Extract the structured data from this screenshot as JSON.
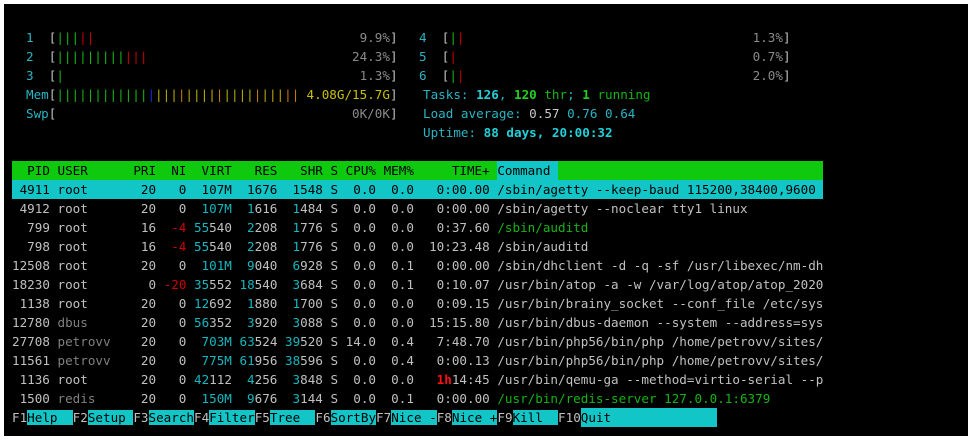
{
  "meters_left": [
    {
      "label": "1",
      "bars": [
        "g",
        "g",
        "g",
        "r",
        "r"
      ],
      "value": "9.9%"
    },
    {
      "label": "2",
      "bars": [
        "g",
        "g",
        "g",
        "g",
        "g",
        "g",
        "g",
        "g",
        "g",
        "r",
        "r",
        "r"
      ],
      "value": "24.3%"
    },
    {
      "label": "3",
      "bars": [
        "g"
      ],
      "value": "1.3%"
    },
    {
      "label": "Mem",
      "bars": [
        "g",
        "g",
        "g",
        "g",
        "g",
        "g",
        "g",
        "g",
        "g",
        "g",
        "g",
        "g",
        "b",
        "y",
        "y",
        "y",
        "o",
        "y",
        "y",
        "y",
        "y",
        "o",
        "y",
        "y",
        "y",
        "y",
        "o",
        "y",
        "y",
        "y",
        "o",
        "o"
      ],
      "value": "4.08G/15.7G",
      "value_color": "#c8c000"
    },
    {
      "label": "Swp",
      "bars": [],
      "value": "0K/0K"
    }
  ],
  "meters_right": [
    {
      "label": "4",
      "bars": [
        "g",
        "r"
      ],
      "value": "1.3%"
    },
    {
      "label": "5",
      "bars": [
        "r"
      ],
      "value": "0.7%"
    },
    {
      "label": "6",
      "bars": [
        "g",
        "r"
      ],
      "value": "2.0%"
    }
  ],
  "tasks": {
    "label": "Tasks: ",
    "count": "126",
    "sep1": ", ",
    "threads": "120",
    "thr_label": " thr",
    "sep2": "; ",
    "running": "1",
    "running_label": " running"
  },
  "load": {
    "label": "Load average: ",
    "l1": "0.57",
    "l5": "0.76",
    "l15": "0.64"
  },
  "uptime": {
    "label": "Uptime: ",
    "value": "88 days, 20:00:32"
  },
  "columns": [
    "PID",
    "USER",
    "PRI",
    "NI",
    "VIRT",
    "RES",
    "SHR",
    "S",
    "CPU%",
    "MEM%",
    "TIME+",
    "Command"
  ],
  "processes": [
    {
      "pid": "4911",
      "user": "root",
      "pri": "20",
      "ni": "0",
      "virt": "107M",
      "res": "1676",
      "shr": "1548",
      "s": "S",
      "cpu": "0.0",
      "mem": "0.0",
      "time": "0:00.00",
      "cmd": "/sbin/agetty --keep-baud 115200,38400,9600",
      "selected": true
    },
    {
      "pid": "4912",
      "user": "root",
      "pri": "20",
      "ni": "0",
      "virt": "107M",
      "res": "1616",
      "shr": "1484",
      "s": "S",
      "cpu": "0.0",
      "mem": "0.0",
      "time": "0:00.00",
      "cmd": "/sbin/agetty --noclear tty1 linux"
    },
    {
      "pid": "799",
      "user": "root",
      "pri": "16",
      "ni": "-4",
      "virt": "55540",
      "res": "2208",
      "shr": "1776",
      "s": "S",
      "cpu": "0.0",
      "mem": "0.0",
      "time": "0:37.60",
      "cmd": "/sbin/auditd",
      "thread": true
    },
    {
      "pid": "798",
      "user": "root",
      "pri": "16",
      "ni": "-4",
      "virt": "55540",
      "res": "2208",
      "shr": "1776",
      "s": "S",
      "cpu": "0.0",
      "mem": "0.0",
      "time": "10:23.48",
      "cmd": "/sbin/auditd"
    },
    {
      "pid": "12508",
      "user": "root",
      "pri": "20",
      "ni": "0",
      "virt": "101M",
      "res": "9040",
      "shr": "6928",
      "s": "S",
      "cpu": "0.0",
      "mem": "0.1",
      "time": "0:00.00",
      "cmd": "/sbin/dhclient -d -q -sf /usr/libexec/nm-dh"
    },
    {
      "pid": "18230",
      "user": "root",
      "pri": "0",
      "ni": "-20",
      "virt": "35552",
      "res": "18540",
      "shr": "3684",
      "s": "S",
      "cpu": "0.0",
      "mem": "0.1",
      "time": "0:10.07",
      "cmd": "/usr/bin/atop -a -w /var/log/atop/atop_2020"
    },
    {
      "pid": "1138",
      "user": "root",
      "pri": "20",
      "ni": "0",
      "virt": "12692",
      "res": "1880",
      "shr": "1700",
      "s": "S",
      "cpu": "0.0",
      "mem": "0.0",
      "time": "0:09.15",
      "cmd": "/usr/bin/brainy_socket --conf_file /etc/sys"
    },
    {
      "pid": "12780",
      "user": "dbus",
      "pri": "20",
      "ni": "0",
      "virt": "56352",
      "res": "3920",
      "shr": "3088",
      "s": "S",
      "cpu": "0.0",
      "mem": "0.0",
      "time": "15:15.80",
      "cmd": "/usr/bin/dbus-daemon --system --address=sys"
    },
    {
      "pid": "27708",
      "user": "petrovv",
      "pri": "20",
      "ni": "0",
      "virt": "703M",
      "res": "63524",
      "shr": "39520",
      "s": "S",
      "cpu": "14.0",
      "mem": "0.4",
      "time": "7:48.70",
      "cmd": "/usr/bin/php56/bin/php /home/petrovv/sites/"
    },
    {
      "pid": "11561",
      "user": "petrovv",
      "pri": "20",
      "ni": "0",
      "virt": "775M",
      "res": "61956",
      "shr": "38596",
      "s": "S",
      "cpu": "0.0",
      "mem": "0.4",
      "time": "0:00.13",
      "cmd": "/usr/bin/php56/bin/php /home/petrovv/sites/"
    },
    {
      "pid": "1136",
      "user": "root",
      "pri": "20",
      "ni": "0",
      "virt": "42112",
      "res": "4256",
      "shr": "3848",
      "s": "S",
      "cpu": "0.0",
      "mem": "0.0",
      "time": "1h14:45",
      "cmd": "/usr/bin/qemu-ga --method=virtio-serial --p"
    },
    {
      "pid": "1500",
      "user": "redis",
      "pri": "20",
      "ni": "0",
      "virt": "150M",
      "res": "9676",
      "shr": "3144",
      "s": "S",
      "cpu": "0.0",
      "mem": "0.1",
      "time": "0:00.00",
      "cmd": "/usr/bin/redis-server 127.0.0.1:6379",
      "thread": true
    }
  ],
  "footer": [
    {
      "key": "F1",
      "label": "Help  "
    },
    {
      "key": "F2",
      "label": "Setup "
    },
    {
      "key": "F3",
      "label": "Search"
    },
    {
      "key": "F4",
      "label": "Filter"
    },
    {
      "key": "F5",
      "label": "Tree  "
    },
    {
      "key": "F6",
      "label": "SortBy"
    },
    {
      "key": "F7",
      "label": "Nice -"
    },
    {
      "key": "F8",
      "label": "Nice +"
    },
    {
      "key": "F9",
      "label": "Kill  "
    },
    {
      "key": "F10",
      "label": "Quit"
    }
  ],
  "colors": {
    "header_bg": "#0fc90f",
    "selection_bg": "#12c6c8",
    "label": "#2ab4c4"
  }
}
